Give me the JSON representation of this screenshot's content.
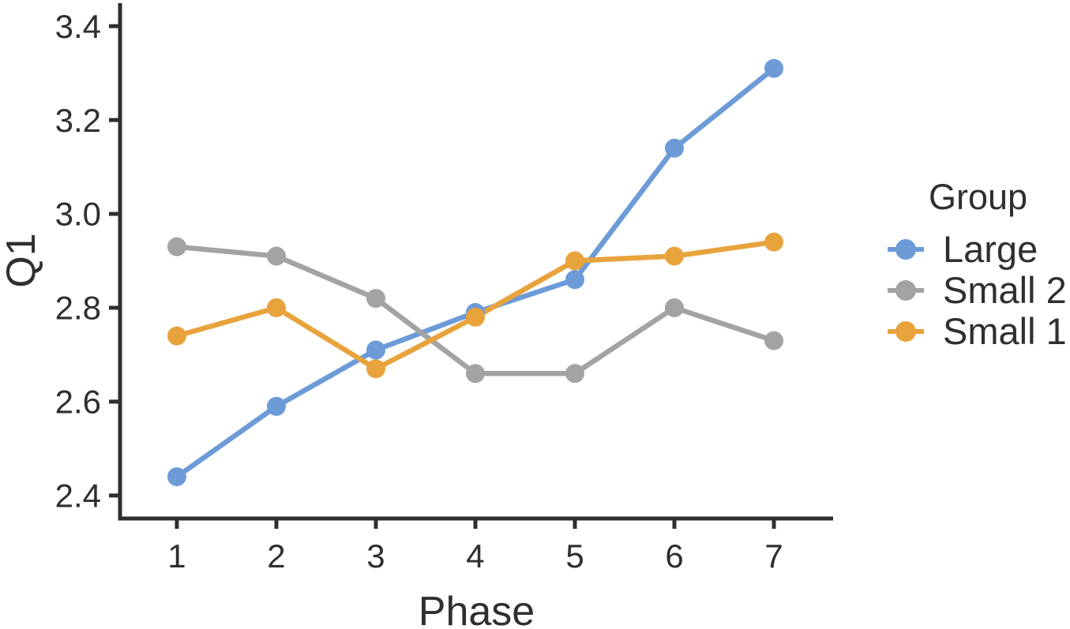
{
  "chart_data": {
    "type": "line",
    "title": "",
    "xlabel": "Phase",
    "ylabel": "Q1",
    "x": [
      1,
      2,
      3,
      4,
      5,
      6,
      7
    ],
    "x_tick_labels": [
      "1",
      "2",
      "3",
      "4",
      "5",
      "6",
      "7"
    ],
    "y_tick_values": [
      2.4,
      2.6,
      2.8,
      3.0,
      3.2,
      3.4
    ],
    "y_tick_labels": [
      "2.4",
      "2.6",
      "2.8",
      "3.0",
      "3.2",
      "3.4"
    ],
    "xlim": [
      0.429,
      7.595
    ],
    "ylim": [
      2.351,
      3.449
    ],
    "grid": false,
    "legend": {
      "title": "Group",
      "position": "right"
    },
    "series": [
      {
        "name": "Large",
        "color": "#6C9BD8",
        "values": [
          2.44,
          2.59,
          2.71,
          2.79,
          2.86,
          3.14,
          3.31
        ]
      },
      {
        "name": "Small 2",
        "color": "#A3A3A3",
        "values": [
          2.93,
          2.91,
          2.82,
          2.66,
          2.66,
          2.8,
          2.73
        ]
      },
      {
        "name": "Small 1",
        "color": "#E8A33D",
        "values": [
          2.74,
          2.8,
          2.67,
          2.78,
          2.9,
          2.91,
          2.94
        ]
      }
    ]
  },
  "colors": {
    "text": "#2F2F2F",
    "axis": "#2F2F2F",
    "background": "#FFFFFF"
  }
}
